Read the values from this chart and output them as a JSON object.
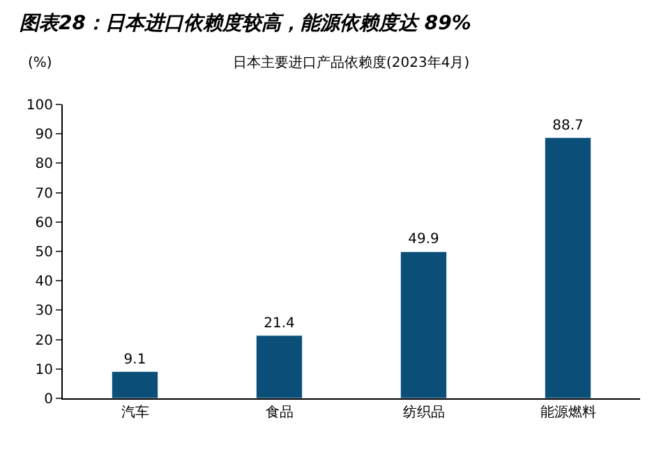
{
  "chart_data": {
    "type": "bar",
    "title": "图表28：日本进口依赖度较高，能源依赖度达 89%",
    "subtitle": "日本主要进口产品依赖度(2023年4月)",
    "ylabel": "(%)",
    "categories": [
      "汽车",
      "食品",
      "纺织品",
      "能源燃料"
    ],
    "values": [
      9.1,
      21.4,
      49.9,
      88.7
    ],
    "color": "#0b4f79",
    "ylim": [
      0,
      100
    ],
    "yticks": [
      0,
      10,
      20,
      30,
      40,
      50,
      60,
      70,
      80,
      90,
      100
    ],
    "data_labels": true
  }
}
